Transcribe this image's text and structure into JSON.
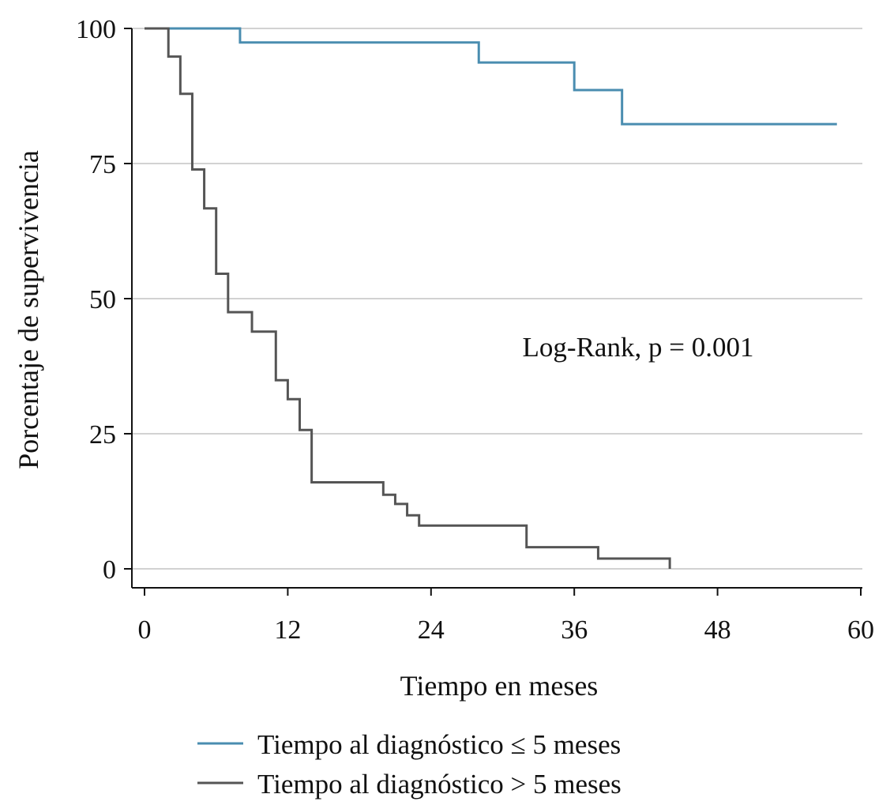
{
  "chart_data": {
    "type": "line",
    "subtype": "kaplan-meier-step",
    "title": "",
    "xlabel": "Tiempo en meses",
    "ylabel": "Porcentaje de supervivencia",
    "xlim": [
      -1,
      60
    ],
    "ylim": [
      -3.5,
      100
    ],
    "xticks": [
      0,
      12,
      24,
      36,
      48,
      60
    ],
    "yticks": [
      0,
      25,
      50,
      75,
      100
    ],
    "grid": "horizontal",
    "annotation": "Log-Rank, p = 0.001",
    "legend_position": "bottom-center",
    "series": [
      {
        "name": "Tiempo al diagnóstico ≤ 5 meses",
        "color": "#4a8db0",
        "x": [
          0,
          8,
          28,
          36,
          40,
          58
        ],
        "y": [
          100,
          97.4,
          93.7,
          88.6,
          82.3,
          82.3
        ]
      },
      {
        "name": "Tiempo al diagnóstico > 5 meses",
        "color": "#555555",
        "x": [
          0,
          2,
          3,
          4,
          5,
          6,
          7,
          9,
          11,
          12,
          13,
          14,
          20,
          21,
          22,
          23,
          32,
          38,
          44,
          44
        ],
        "y": [
          100,
          94.8,
          87.9,
          73.9,
          66.7,
          54.6,
          47.5,
          43.9,
          34.9,
          31.4,
          25.7,
          16.0,
          13.7,
          12.0,
          9.9,
          8.0,
          4.0,
          1.9,
          1.9,
          0
        ]
      }
    ]
  }
}
